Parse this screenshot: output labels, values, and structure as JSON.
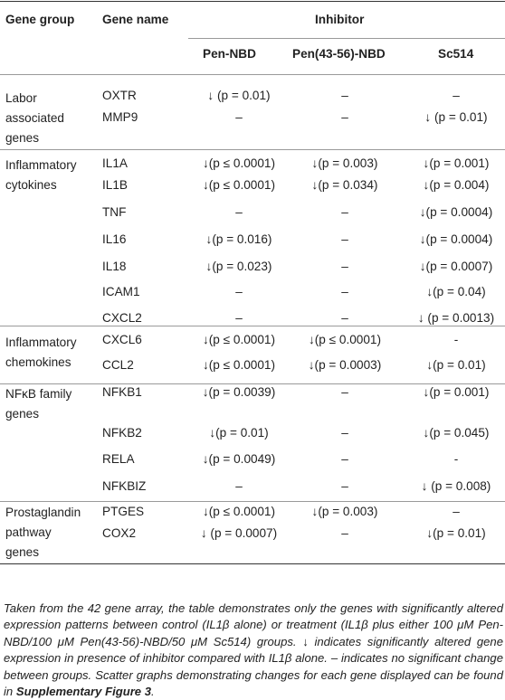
{
  "table": {
    "headers": {
      "gene_group": "Gene group",
      "gene_name": "Gene name",
      "inhibitor": "Inhibitor",
      "pen_nbd": "Pen-NBD",
      "pen_43_56_nbd": "Pen(43-56)-NBD",
      "sc514": "Sc514"
    },
    "groups": [
      {
        "label_lines": [
          "Labor",
          "associated",
          "genes"
        ]
      },
      {
        "label_lines": [
          "Inflammatory",
          "cytokines"
        ]
      },
      {
        "label_lines": [
          "Inflammatory",
          "chemokines"
        ]
      },
      {
        "label_lines": [
          "NFκB family",
          "genes"
        ]
      },
      {
        "label_lines": [
          "Prostaglandin",
          "pathway",
          "genes"
        ]
      }
    ],
    "rows": [
      {
        "gene": "OXTR",
        "pen": "↓ (p = 0.01)",
        "pen43": "–",
        "sc": "–"
      },
      {
        "gene": "MMP9",
        "pen": "–",
        "pen43": "–",
        "sc": "↓ (p = 0.01)"
      },
      {
        "gene": "IL1A",
        "pen": "↓(p ≤ 0.0001)",
        "pen43": "↓(p = 0.003)",
        "sc": "↓(p = 0.001)"
      },
      {
        "gene": "IL1B",
        "pen": "↓(p ≤ 0.0001)",
        "pen43": "↓(p = 0.034)",
        "sc": "↓(p = 0.004)"
      },
      {
        "gene": "TNF",
        "pen": "–",
        "pen43": "–",
        "sc": "↓(p = 0.0004)"
      },
      {
        "gene": "IL16",
        "pen": "↓(p = 0.016)",
        "pen43": "–",
        "sc": "↓(p = 0.0004)"
      },
      {
        "gene": "IL18",
        "pen": "↓(p = 0.023)",
        "pen43": "–",
        "sc": "↓(p = 0.0007)"
      },
      {
        "gene": "ICAM1",
        "pen": "–",
        "pen43": "–",
        "sc": "↓(p = 0.04)"
      },
      {
        "gene": "CXCL2",
        "pen": "–",
        "pen43": "–",
        "sc": "↓ (p = 0.0013)"
      },
      {
        "gene": "CXCL6",
        "pen": "↓(p ≤ 0.0001)",
        "pen43": "↓(p ≤ 0.0001)",
        "sc": "-"
      },
      {
        "gene": "CCL2",
        "pen": "↓(p ≤ 0.0001)",
        "pen43": "↓(p = 0.0003)",
        "sc": "↓(p = 0.01)"
      },
      {
        "gene": "NFKB1",
        "pen": "↓(p = 0.0039)",
        "pen43": "–",
        "sc": "↓(p = 0.001)"
      },
      {
        "gene": "NFKB2",
        "pen": "↓(p = 0.01)",
        "pen43": "–",
        "sc": "↓(p = 0.045)"
      },
      {
        "gene": "RELA",
        "pen": "↓(p = 0.0049)",
        "pen43": "–",
        "sc": "-"
      },
      {
        "gene": "NFKBIZ",
        "pen": "–",
        "pen43": "–",
        "sc": "↓ (p = 0.008)"
      },
      {
        "gene": "PTGES",
        "pen": "↓(p ≤ 0.0001)",
        "pen43": "↓(p = 0.003)",
        "sc": "–"
      },
      {
        "gene": "COX2",
        "pen": "↓ (p = 0.0007)",
        "pen43": "–",
        "sc": "↓(p = 0.01)"
      }
    ]
  },
  "caption": {
    "text_before_bold": "Taken from the 42 gene array, the table demonstrates only the genes with significantly altered expression patterns between control (IL1β alone) or treatment (IL1β plus either 100 μM Pen-NBD/100 μM Pen(43-56)-NBD/50 μM Sc514) groups. ↓ indicates significantly altered gene expression in presence of inhibitor compared with IL1β alone. – indicates no significant change between groups. Scatter graphs demonstrating changes for each gene displayed can be found in ",
    "bold_ref": "Supplementary Figure 3",
    "text_after_bold": "."
  }
}
